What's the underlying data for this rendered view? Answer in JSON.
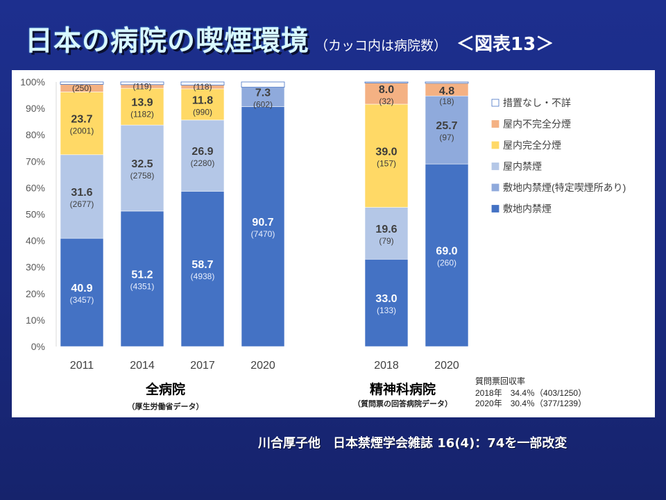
{
  "header": {
    "title": "日本の病院の喫煙環境",
    "subtitle": "（カッコ内は病院数）",
    "figure_label": "＜図表13＞"
  },
  "footer": {
    "citation": "川合厚子他　日本禁煙学会雑誌 16(4)：74を一部改変"
  },
  "colors": {
    "敷地内禁煙": "#4472c4",
    "敷地内禁煙(特定喫煙所あり)": "#8faadc",
    "屋内禁煙": "#b4c7e7",
    "屋内完全分煙": "#ffd966",
    "屋内不完全分煙": "#f4b183",
    "措置なし・不詳": "#ffffff"
  },
  "chart_data": {
    "type": "bar",
    "stacked": true,
    "ylim": [
      0,
      100
    ],
    "yticks": [
      "0%",
      "10%",
      "20%",
      "30%",
      "40%",
      "50%",
      "60%",
      "70%",
      "80%",
      "90%",
      "100%"
    ],
    "grid": false,
    "legend_position": "right",
    "legend": [
      "措置なし・不詳",
      "屋内不完全分煙",
      "屋内完全分煙",
      "屋内禁煙",
      "敷地内禁煙(特定喫煙所あり)",
      "敷地内禁煙"
    ],
    "groups": [
      {
        "label": "全病院",
        "sublabel": "（厚生労働省データ）"
      },
      {
        "label": "精神科病院",
        "sublabel": "（質問票の回答病院データ）"
      }
    ],
    "survey_note": {
      "title": "質問票回収率",
      "lines": [
        "2018年　34.4％（403/1250）",
        "2020年　30.4％（377/1239）"
      ]
    },
    "bars": [
      {
        "category": "2011",
        "group": 0,
        "segments": [
          {
            "series": "敷地内禁煙",
            "value": 40.9,
            "label": "40.9",
            "count": "(3457)"
          },
          {
            "series": "屋内禁煙",
            "value": 31.6,
            "label": "31.6",
            "count": "(2677)"
          },
          {
            "series": "屋内完全分煙",
            "value": 23.7,
            "label": "23.7",
            "count": "(2001)"
          },
          {
            "series": "屋内不完全分煙",
            "value": 2.9,
            "label": "",
            "count": "(250)"
          },
          {
            "series": "措置なし・不詳",
            "value": 0.9,
            "label": "",
            "count": ""
          }
        ]
      },
      {
        "category": "2014",
        "group": 0,
        "segments": [
          {
            "series": "敷地内禁煙",
            "value": 51.2,
            "label": "51.2",
            "count": "(4351)"
          },
          {
            "series": "屋内禁煙",
            "value": 32.5,
            "label": "32.5",
            "count": "(2758)"
          },
          {
            "series": "屋内完全分煙",
            "value": 13.9,
            "label": "13.9",
            "count": "(1182)"
          },
          {
            "series": "屋内不完全分煙",
            "value": 1.4,
            "label": "",
            "count": "(119)"
          },
          {
            "series": "措置なし・不詳",
            "value": 1.0,
            "label": "",
            "count": ""
          }
        ]
      },
      {
        "category": "2017",
        "group": 0,
        "segments": [
          {
            "series": "敷地内禁煙",
            "value": 58.7,
            "label": "58.7",
            "count": "(4938)"
          },
          {
            "series": "屋内禁煙",
            "value": 26.9,
            "label": "26.9",
            "count": "(2280)"
          },
          {
            "series": "屋内完全分煙",
            "value": 11.8,
            "label": "11.8",
            "count": "(990)"
          },
          {
            "series": "屋内不完全分煙",
            "value": 1.4,
            "label": "",
            "count": "(118)"
          },
          {
            "series": "措置なし・不詳",
            "value": 1.2,
            "label": "",
            "count": ""
          }
        ]
      },
      {
        "category": "2020",
        "group": 0,
        "segments": [
          {
            "series": "敷地内禁煙",
            "value": 90.7,
            "label": "90.7",
            "count": "(7470)"
          },
          {
            "series": "敷地内禁煙(特定喫煙所あり)",
            "value": 7.3,
            "label": "7.3",
            "count": "(602)"
          },
          {
            "series": "措置なし・不詳",
            "value": 2.0,
            "label": "",
            "count": ""
          }
        ]
      },
      {
        "category": "2018",
        "group": 1,
        "segments": [
          {
            "series": "敷地内禁煙",
            "value": 33.0,
            "label": "33.0",
            "count": "(133)"
          },
          {
            "series": "屋内禁煙",
            "value": 19.6,
            "label": "19.6",
            "count": "(79)"
          },
          {
            "series": "屋内完全分煙",
            "value": 39.0,
            "label": "39.0",
            "count": "(157)"
          },
          {
            "series": "屋内不完全分煙",
            "value": 8.0,
            "label": "8.0",
            "count": "(32)"
          },
          {
            "series": "措置なし・不詳",
            "value": 0.4,
            "label": "",
            "count": ""
          }
        ]
      },
      {
        "category": "2020",
        "group": 1,
        "segments": [
          {
            "series": "敷地内禁煙",
            "value": 69.0,
            "label": "69.0",
            "count": "(260)"
          },
          {
            "series": "敷地内禁煙(特定喫煙所あり)",
            "value": 25.7,
            "label": "25.7",
            "count": "(97)"
          },
          {
            "series": "屋内不完全分煙",
            "value": 4.8,
            "label": "4.8",
            "count": "(18)"
          },
          {
            "series": "措置なし・不詳",
            "value": 0.5,
            "label": "",
            "count": ""
          }
        ]
      }
    ]
  }
}
